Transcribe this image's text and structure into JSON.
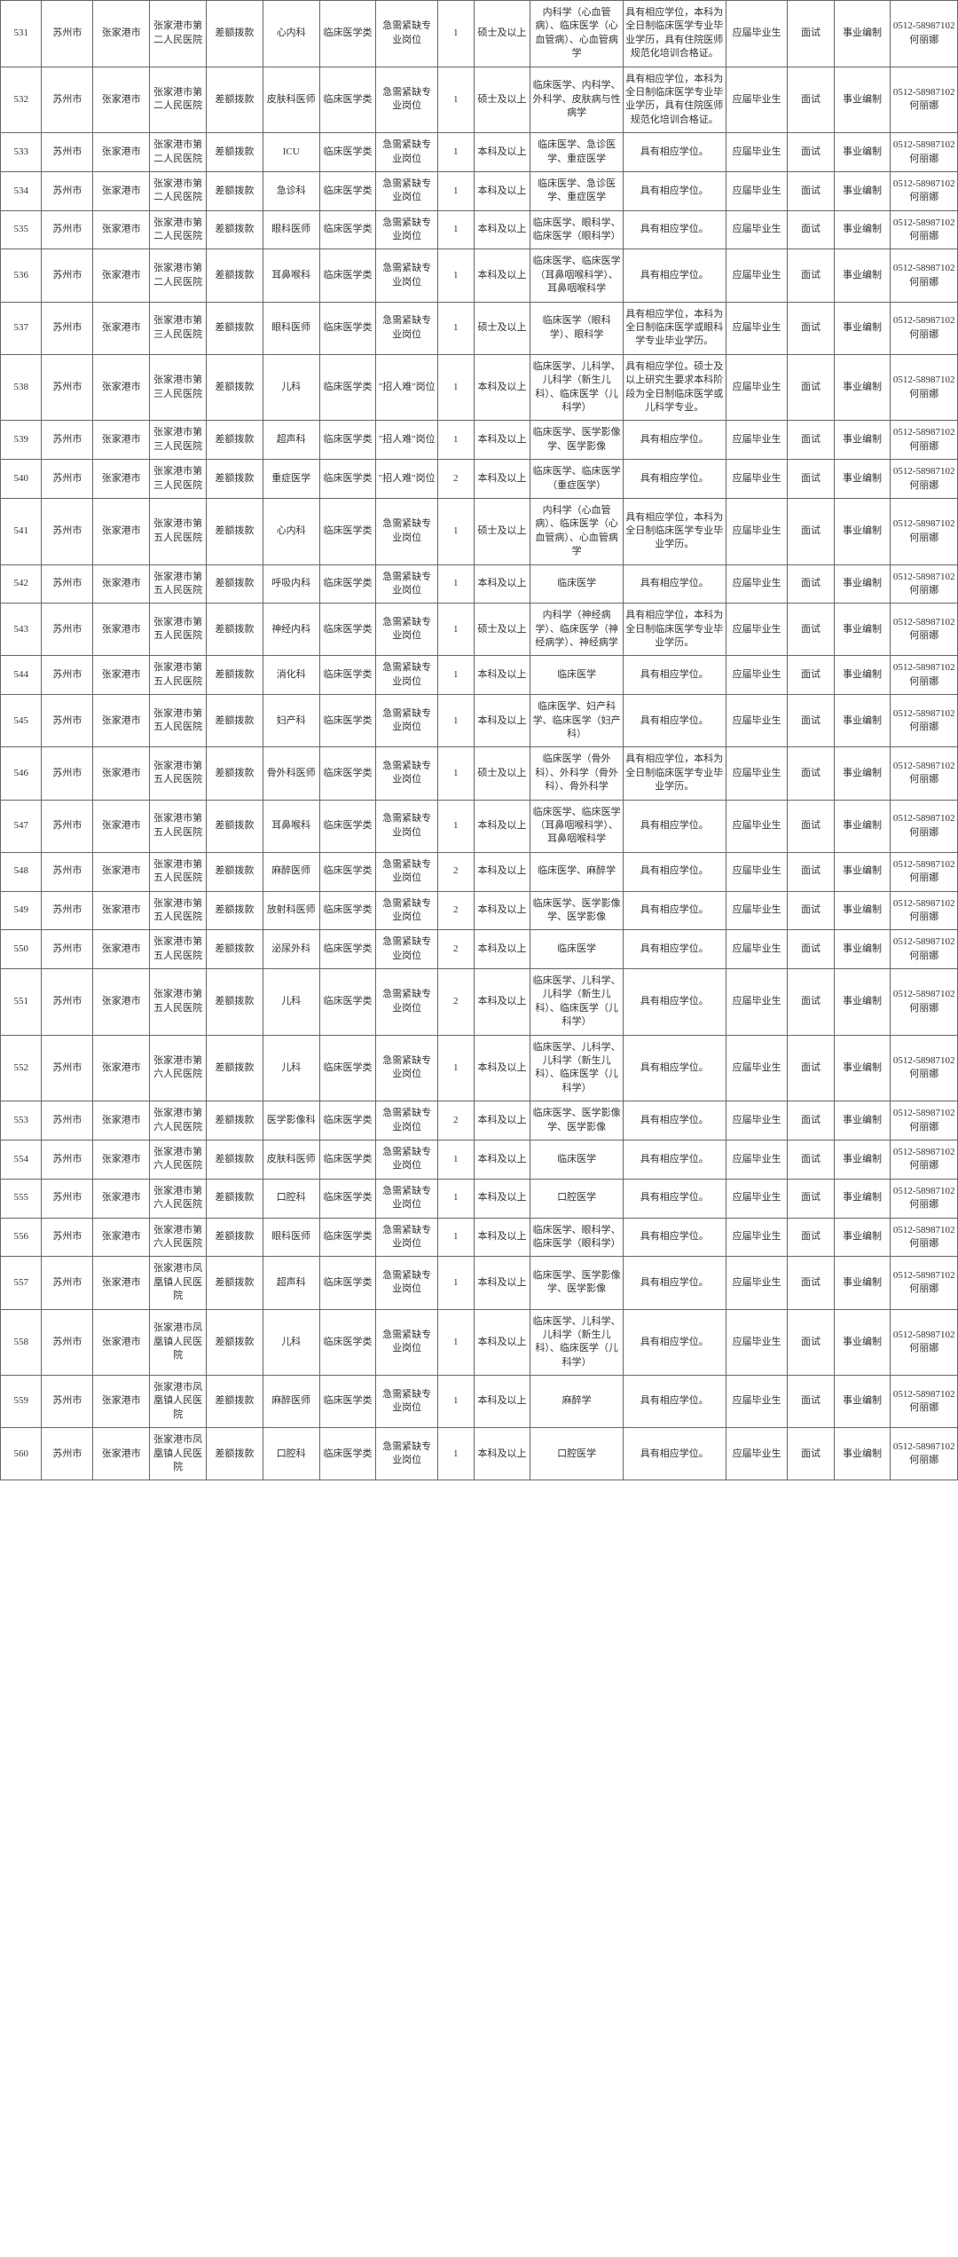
{
  "table": {
    "columns": 16,
    "rows": [
      [
        "531",
        "苏州市",
        "张家港市",
        "张家港市第二人民医院",
        "差额拨款",
        "心内科",
        "临床医学类",
        "急需紧缺专业岗位",
        "1",
        "硕士及以上",
        "内科学（心血管病）、临床医学（心血管病）、心血管病学",
        "具有相应学位，本科为全日制临床医学专业毕业学历，具有住院医师规范化培训合格证。",
        "应届毕业生",
        "面试",
        "事业编制",
        "0512-58987102 何丽娜"
      ],
      [
        "532",
        "苏州市",
        "张家港市",
        "张家港市第二人民医院",
        "差额拨款",
        "皮肤科医师",
        "临床医学类",
        "急需紧缺专业岗位",
        "1",
        "硕士及以上",
        "临床医学、内科学、外科学、皮肤病与性病学",
        "具有相应学位，本科为全日制临床医学专业毕业学历，具有住院医师规范化培训合格证。",
        "应届毕业生",
        "面试",
        "事业编制",
        "0512-58987102 何丽娜"
      ],
      [
        "533",
        "苏州市",
        "张家港市",
        "张家港市第二人民医院",
        "差额拨款",
        "ICU",
        "临床医学类",
        "急需紧缺专业岗位",
        "1",
        "本科及以上",
        "临床医学、急诊医学、重症医学",
        "具有相应学位。",
        "应届毕业生",
        "面试",
        "事业编制",
        "0512-58987102 何丽娜"
      ],
      [
        "534",
        "苏州市",
        "张家港市",
        "张家港市第二人民医院",
        "差额拨款",
        "急诊科",
        "临床医学类",
        "急需紧缺专业岗位",
        "1",
        "本科及以上",
        "临床医学、急诊医学、重症医学",
        "具有相应学位。",
        "应届毕业生",
        "面试",
        "事业编制",
        "0512-58987102 何丽娜"
      ],
      [
        "535",
        "苏州市",
        "张家港市",
        "张家港市第二人民医院",
        "差额拨款",
        "眼科医师",
        "临床医学类",
        "急需紧缺专业岗位",
        "1",
        "本科及以上",
        "临床医学、眼科学、临床医学（眼科学）",
        "具有相应学位。",
        "应届毕业生",
        "面试",
        "事业编制",
        "0512-58987102 何丽娜"
      ],
      [
        "536",
        "苏州市",
        "张家港市",
        "张家港市第二人民医院",
        "差额拨款",
        "耳鼻喉科",
        "临床医学类",
        "急需紧缺专业岗位",
        "1",
        "本科及以上",
        "临床医学、临床医学（耳鼻咽喉科学）、耳鼻咽喉科学",
        "具有相应学位。",
        "应届毕业生",
        "面试",
        "事业编制",
        "0512-58987102 何丽娜"
      ],
      [
        "537",
        "苏州市",
        "张家港市",
        "张家港市第三人民医院",
        "差额拨款",
        "眼科医师",
        "临床医学类",
        "急需紧缺专业岗位",
        "1",
        "硕士及以上",
        "临床医学（眼科学）、眼科学",
        "具有相应学位，本科为全日制临床医学或眼科学专业毕业学历。",
        "应届毕业生",
        "面试",
        "事业编制",
        "0512-58987102 何丽娜"
      ],
      [
        "538",
        "苏州市",
        "张家港市",
        "张家港市第三人民医院",
        "差额拨款",
        "儿科",
        "临床医学类",
        "\"招人难\"岗位",
        "1",
        "本科及以上",
        "临床医学、儿科学、儿科学（新生儿科）、临床医学（儿科学）",
        "具有相应学位。硕士及以上研究生要求本科阶段为全日制临床医学或儿科学专业。",
        "应届毕业生",
        "面试",
        "事业编制",
        "0512-58987102 何丽娜"
      ],
      [
        "539",
        "苏州市",
        "张家港市",
        "张家港市第三人民医院",
        "差额拨款",
        "超声科",
        "临床医学类",
        "\"招人难\"岗位",
        "1",
        "本科及以上",
        "临床医学、医学影像学、医学影像",
        "具有相应学位。",
        "应届毕业生",
        "面试",
        "事业编制",
        "0512-58987102 何丽娜"
      ],
      [
        "540",
        "苏州市",
        "张家港市",
        "张家港市第三人民医院",
        "差额拨款",
        "重症医学",
        "临床医学类",
        "\"招人难\"岗位",
        "2",
        "本科及以上",
        "临床医学、临床医学（重症医学）",
        "具有相应学位。",
        "应届毕业生",
        "面试",
        "事业编制",
        "0512-58987102 何丽娜"
      ],
      [
        "541",
        "苏州市",
        "张家港市",
        "张家港市第五人民医院",
        "差额拨款",
        "心内科",
        "临床医学类",
        "急需紧缺专业岗位",
        "1",
        "硕士及以上",
        "内科学（心血管病）、临床医学（心血管病）、心血管病学",
        "具有相应学位，本科为全日制临床医学专业毕业学历。",
        "应届毕业生",
        "面试",
        "事业编制",
        "0512-58987102 何丽娜"
      ],
      [
        "542",
        "苏州市",
        "张家港市",
        "张家港市第五人民医院",
        "差额拨款",
        "呼吸内科",
        "临床医学类",
        "急需紧缺专业岗位",
        "1",
        "本科及以上",
        "临床医学",
        "具有相应学位。",
        "应届毕业生",
        "面试",
        "事业编制",
        "0512-58987102 何丽娜"
      ],
      [
        "543",
        "苏州市",
        "张家港市",
        "张家港市第五人民医院",
        "差额拨款",
        "神经内科",
        "临床医学类",
        "急需紧缺专业岗位",
        "1",
        "硕士及以上",
        "内科学（神经病学）、临床医学（神经病学）、神经病学",
        "具有相应学位，本科为全日制临床医学专业毕业学历。",
        "应届毕业生",
        "面试",
        "事业编制",
        "0512-58987102 何丽娜"
      ],
      [
        "544",
        "苏州市",
        "张家港市",
        "张家港市第五人民医院",
        "差额拨款",
        "消化科",
        "临床医学类",
        "急需紧缺专业岗位",
        "1",
        "本科及以上",
        "临床医学",
        "具有相应学位。",
        "应届毕业生",
        "面试",
        "事业编制",
        "0512-58987102 何丽娜"
      ],
      [
        "545",
        "苏州市",
        "张家港市",
        "张家港市第五人民医院",
        "差额拨款",
        "妇产科",
        "临床医学类",
        "急需紧缺专业岗位",
        "1",
        "本科及以上",
        "临床医学、妇产科学、临床医学（妇产科）",
        "具有相应学位。",
        "应届毕业生",
        "面试",
        "事业编制",
        "0512-58987102 何丽娜"
      ],
      [
        "546",
        "苏州市",
        "张家港市",
        "张家港市第五人民医院",
        "差额拨款",
        "骨外科医师",
        "临床医学类",
        "急需紧缺专业岗位",
        "1",
        "硕士及以上",
        "临床医学（骨外科）、外科学（骨外科）、骨外科学",
        "具有相应学位，本科为全日制临床医学专业毕业学历。",
        "应届毕业生",
        "面试",
        "事业编制",
        "0512-58987102 何丽娜"
      ],
      [
        "547",
        "苏州市",
        "张家港市",
        "张家港市第五人民医院",
        "差额拨款",
        "耳鼻喉科",
        "临床医学类",
        "急需紧缺专业岗位",
        "1",
        "本科及以上",
        "临床医学、临床医学（耳鼻咽喉科学）、耳鼻咽喉科学",
        "具有相应学位。",
        "应届毕业生",
        "面试",
        "事业编制",
        "0512-58987102 何丽娜"
      ],
      [
        "548",
        "苏州市",
        "张家港市",
        "张家港市第五人民医院",
        "差额拨款",
        "麻醉医师",
        "临床医学类",
        "急需紧缺专业岗位",
        "2",
        "本科及以上",
        "临床医学、麻醉学",
        "具有相应学位。",
        "应届毕业生",
        "面试",
        "事业编制",
        "0512-58987102 何丽娜"
      ],
      [
        "549",
        "苏州市",
        "张家港市",
        "张家港市第五人民医院",
        "差额拨款",
        "放射科医师",
        "临床医学类",
        "急需紧缺专业岗位",
        "2",
        "本科及以上",
        "临床医学、医学影像学、医学影像",
        "具有相应学位。",
        "应届毕业生",
        "面试",
        "事业编制",
        "0512-58987102 何丽娜"
      ],
      [
        "550",
        "苏州市",
        "张家港市",
        "张家港市第五人民医院",
        "差额拨款",
        "泌尿外科",
        "临床医学类",
        "急需紧缺专业岗位",
        "2",
        "本科及以上",
        "临床医学",
        "具有相应学位。",
        "应届毕业生",
        "面试",
        "事业编制",
        "0512-58987102 何丽娜"
      ],
      [
        "551",
        "苏州市",
        "张家港市",
        "张家港市第五人民医院",
        "差额拨款",
        "儿科",
        "临床医学类",
        "急需紧缺专业岗位",
        "2",
        "本科及以上",
        "临床医学、儿科学、儿科学（新生儿科）、临床医学（儿科学）",
        "具有相应学位。",
        "应届毕业生",
        "面试",
        "事业编制",
        "0512-58987102 何丽娜"
      ],
      [
        "552",
        "苏州市",
        "张家港市",
        "张家港市第六人民医院",
        "差额拨款",
        "儿科",
        "临床医学类",
        "急需紧缺专业岗位",
        "1",
        "本科及以上",
        "临床医学、儿科学、儿科学（新生儿科）、临床医学（儿科学）",
        "具有相应学位。",
        "应届毕业生",
        "面试",
        "事业编制",
        "0512-58987102 何丽娜"
      ],
      [
        "553",
        "苏州市",
        "张家港市",
        "张家港市第六人民医院",
        "差额拨款",
        "医学影像科",
        "临床医学类",
        "急需紧缺专业岗位",
        "2",
        "本科及以上",
        "临床医学、医学影像学、医学影像",
        "具有相应学位。",
        "应届毕业生",
        "面试",
        "事业编制",
        "0512-58987102 何丽娜"
      ],
      [
        "554",
        "苏州市",
        "张家港市",
        "张家港市第六人民医院",
        "差额拨款",
        "皮肤科医师",
        "临床医学类",
        "急需紧缺专业岗位",
        "1",
        "本科及以上",
        "临床医学",
        "具有相应学位。",
        "应届毕业生",
        "面试",
        "事业编制",
        "0512-58987102 何丽娜"
      ],
      [
        "555",
        "苏州市",
        "张家港市",
        "张家港市第六人民医院",
        "差额拨款",
        "口腔科",
        "临床医学类",
        "急需紧缺专业岗位",
        "1",
        "本科及以上",
        "口腔医学",
        "具有相应学位。",
        "应届毕业生",
        "面试",
        "事业编制",
        "0512-58987102 何丽娜"
      ],
      [
        "556",
        "苏州市",
        "张家港市",
        "张家港市第六人民医院",
        "差额拨款",
        "眼科医师",
        "临床医学类",
        "急需紧缺专业岗位",
        "1",
        "本科及以上",
        "临床医学、眼科学、临床医学（眼科学）",
        "具有相应学位。",
        "应届毕业生",
        "面试",
        "事业编制",
        "0512-58987102 何丽娜"
      ],
      [
        "557",
        "苏州市",
        "张家港市",
        "张家港市凤凰镇人民医院",
        "差额拨款",
        "超声科",
        "临床医学类",
        "急需紧缺专业岗位",
        "1",
        "本科及以上",
        "临床医学、医学影像学、医学影像",
        "具有相应学位。",
        "应届毕业生",
        "面试",
        "事业编制",
        "0512-58987102 何丽娜"
      ],
      [
        "558",
        "苏州市",
        "张家港市",
        "张家港市凤凰镇人民医院",
        "差额拨款",
        "儿科",
        "临床医学类",
        "急需紧缺专业岗位",
        "1",
        "本科及以上",
        "临床医学、儿科学、儿科学（新生儿科）、临床医学（儿科学）",
        "具有相应学位。",
        "应届毕业生",
        "面试",
        "事业编制",
        "0512-58987102 何丽娜"
      ],
      [
        "559",
        "苏州市",
        "张家港市",
        "张家港市凤凰镇人民医院",
        "差额拨款",
        "麻醉医师",
        "临床医学类",
        "急需紧缺专业岗位",
        "1",
        "本科及以上",
        "麻醉学",
        "具有相应学位。",
        "应届毕业生",
        "面试",
        "事业编制",
        "0512-58987102 何丽娜"
      ],
      [
        "560",
        "苏州市",
        "张家港市",
        "张家港市凤凰镇人民医院",
        "差额拨款",
        "口腔科",
        "临床医学类",
        "急需紧缺专业岗位",
        "1",
        "本科及以上",
        "口腔医学",
        "具有相应学位。",
        "应届毕业生",
        "面试",
        "事业编制",
        "0512-58987102 何丽娜"
      ]
    ]
  }
}
